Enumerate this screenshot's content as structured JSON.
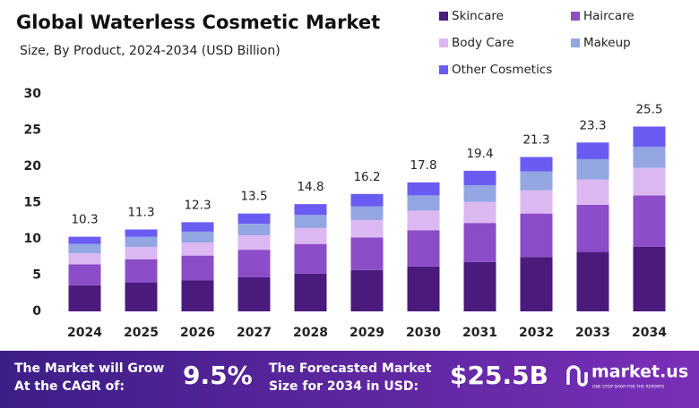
{
  "chart_data": {
    "type": "stacked_bar",
    "title": "Global Waterless Cosmetic Market",
    "subtitle": "Size, By Product, 2024-2034 (USD Billion)",
    "categories": [
      "2024",
      "2025",
      "2026",
      "2027",
      "2028",
      "2029",
      "2030",
      "2031",
      "2032",
      "2033",
      "2034"
    ],
    "series": [
      {
        "name": "Skincare",
        "color": "#4a1a7c",
        "values": [
          3.6,
          4.0,
          4.3,
          4.7,
          5.2,
          5.7,
          6.2,
          6.8,
          7.5,
          8.2,
          8.9
        ]
      },
      {
        "name": "Haircare",
        "color": "#8c4dc8",
        "values": [
          2.9,
          3.2,
          3.4,
          3.8,
          4.1,
          4.5,
          5.0,
          5.4,
          6.0,
          6.5,
          7.1
        ]
      },
      {
        "name": "Body Care",
        "color": "#dcb8f2",
        "values": [
          1.5,
          1.7,
          1.8,
          2.0,
          2.2,
          2.4,
          2.7,
          2.9,
          3.2,
          3.5,
          3.8
        ]
      },
      {
        "name": "Makeup",
        "color": "#93a6e2",
        "values": [
          1.3,
          1.4,
          1.5,
          1.6,
          1.8,
          1.9,
          2.1,
          2.3,
          2.6,
          2.8,
          2.9
        ]
      },
      {
        "name": "Other Cosmetics",
        "color": "#6a5cf2",
        "values": [
          1.0,
          1.0,
          1.3,
          1.4,
          1.5,
          1.7,
          1.8,
          2.0,
          2.0,
          2.3,
          2.8
        ]
      }
    ],
    "totals": [
      10.3,
      11.3,
      12.3,
      13.5,
      14.8,
      16.2,
      17.8,
      19.4,
      21.3,
      23.3,
      25.5
    ],
    "ylim": [
      0,
      30
    ],
    "yticks": [
      0,
      5,
      10,
      15,
      20,
      25,
      30
    ],
    "grid": false
  },
  "footer": {
    "cagr_label": [
      "The Market will Grow",
      "At the CAGR of:"
    ],
    "cagr_value": "9.5%",
    "forecast_label": [
      "The Forecasted Market",
      "Size for 2034 in USD:"
    ],
    "forecast_value": "$25.5B",
    "brand": "market.us",
    "tagline": "ONE STOP SHOP FOR THE REPORTS"
  }
}
